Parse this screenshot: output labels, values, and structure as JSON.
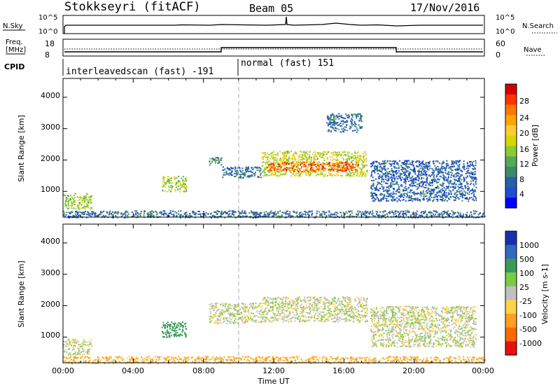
{
  "header": {
    "station": "Stokkseyri (fitACF)",
    "beam": "Beam 05",
    "date": "17/Nov/2016"
  },
  "top_panels": {
    "nsky_label": "N.Sky",
    "nsky_ticks": [
      "10^5",
      "10^0"
    ],
    "nsearch_label": "N.Search",
    "freq_label_1": "Freq.",
    "freq_label_2": "[MHz]",
    "freq_ticks": [
      "18",
      "8"
    ],
    "nave_label": "Nave",
    "nave_ticks": [
      "60",
      "0"
    ],
    "cpid_label": "CPID",
    "mode_1": "interleavedscan (fast) -191",
    "mode_2": "normal (fast) 151"
  },
  "axes": {
    "ylabel": "Slant Range [km]",
    "yticks": [
      "1000",
      "2000",
      "3000",
      "4000"
    ],
    "xlabel": "Time UT",
    "xticks": [
      "00:00",
      "04:00",
      "08:00",
      "12:00",
      "16:00",
      "20:00",
      "00:00"
    ]
  },
  "power_scale": {
    "label": "Power [dB]",
    "ticks": [
      "28",
      "24",
      "20",
      "16",
      "12",
      "8",
      "4"
    ],
    "colors": [
      "#d40000",
      "#ff3300",
      "#ff7700",
      "#ffa500",
      "#ffcc33",
      "#d6d600",
      "#8ccc33",
      "#55aa55",
      "#3c8a6c",
      "#2a5ea8",
      "#1f4fcf",
      "#0000ff"
    ]
  },
  "velocity_scale": {
    "label": "Velocity [m s-1]",
    "ticks": [
      "1000",
      "500",
      "100",
      "25",
      "-25",
      "-100",
      "-500",
      "-1000"
    ],
    "colors": [
      "#1a2fb0",
      "#2f6abf",
      "#3a9a5a",
      "#7acc44",
      "#c0c0c0",
      "#ffd24a",
      "#ffa020",
      "#ff6a00",
      "#e81010"
    ]
  },
  "chart_data": [
    {
      "type": "line",
      "title": "N.Sky / N.Search",
      "x": [
        "00:00",
        "00:20",
        "01:00",
        "06:00",
        "12:00",
        "12:40",
        "13:00",
        "18:00",
        "20:00",
        "24:00"
      ],
      "series": [
        {
          "name": "N.Sky",
          "values": [
            1,
            2000,
            2000,
            2000,
            2000,
            30000,
            3000,
            2000,
            2000,
            2000
          ]
        }
      ],
      "ylim": [
        "10^0",
        "10^5"
      ]
    },
    {
      "type": "line",
      "title": "Freq. / Nave",
      "x": [
        "00:00",
        "08:55",
        "09:00",
        "18:55",
        "19:00",
        "24:00"
      ],
      "series": [
        {
          "name": "Freq.",
          "values": [
            10.5,
            10.5,
            12.6,
            12.6,
            10.5,
            10.5
          ]
        },
        {
          "name": "Nave",
          "values": [
            26,
            26,
            26,
            26,
            26,
            26
          ]
        }
      ]
    },
    {
      "type": "heatmap",
      "title": "Power [dB]",
      "xlabel": "Time UT",
      "ylabel": "Slant Range [km]",
      "xlim": [
        "00:00",
        "24:00"
      ],
      "ylim": [
        180,
        4600
      ],
      "regions": [
        {
          "t0": 0.0,
          "t1": 1.6,
          "r0": 450,
          "r1": 950,
          "power": 14
        },
        {
          "t0": 5.6,
          "t1": 7.0,
          "r0": 1000,
          "r1": 1500,
          "power": 14
        },
        {
          "t0": 8.3,
          "t1": 9.0,
          "r0": 1850,
          "r1": 2100,
          "power": 8
        },
        {
          "t0": 9.0,
          "t1": 11.3,
          "r0": 1450,
          "r1": 1800,
          "power": 6
        },
        {
          "t0": 11.3,
          "t1": 17.3,
          "r0": 1500,
          "r1": 2300,
          "power": 16
        },
        {
          "t0": 11.6,
          "t1": 16.8,
          "r0": 1650,
          "r1": 1950,
          "power": 26
        },
        {
          "t0": 17.5,
          "t1": 23.5,
          "r0": 700,
          "r1": 2000,
          "power": 5
        },
        {
          "t0": 15.0,
          "t1": 17.0,
          "r0": 2900,
          "r1": 3500,
          "power": 6
        },
        {
          "t0": 0.0,
          "t1": 24.0,
          "r0": 180,
          "r1": 400,
          "power": 6
        }
      ]
    },
    {
      "type": "heatmap",
      "title": "Velocity [m s-1]",
      "xlabel": "Time UT",
      "ylabel": "Slant Range [km]",
      "xlim": [
        "00:00",
        "24:00"
      ],
      "ylim": [
        180,
        4600
      ],
      "regions": [
        {
          "t0": 0.0,
          "t1": 1.6,
          "r0": 450,
          "r1": 950,
          "velocity": 0
        },
        {
          "t0": 5.6,
          "t1": 7.0,
          "r0": 1000,
          "r1": 1500,
          "velocity": 150
        },
        {
          "t0": 8.3,
          "t1": 11.3,
          "r0": 1450,
          "r1": 2100,
          "velocity": 0
        },
        {
          "t0": 11.3,
          "t1": 17.3,
          "r0": 1500,
          "r1": 2300,
          "velocity": 0
        },
        {
          "t0": 17.5,
          "t1": 23.5,
          "r0": 700,
          "r1": 2000,
          "velocity": 0
        },
        {
          "t0": 0.0,
          "t1": 24.0,
          "r0": 180,
          "r1": 400,
          "velocity": -80
        }
      ]
    }
  ]
}
